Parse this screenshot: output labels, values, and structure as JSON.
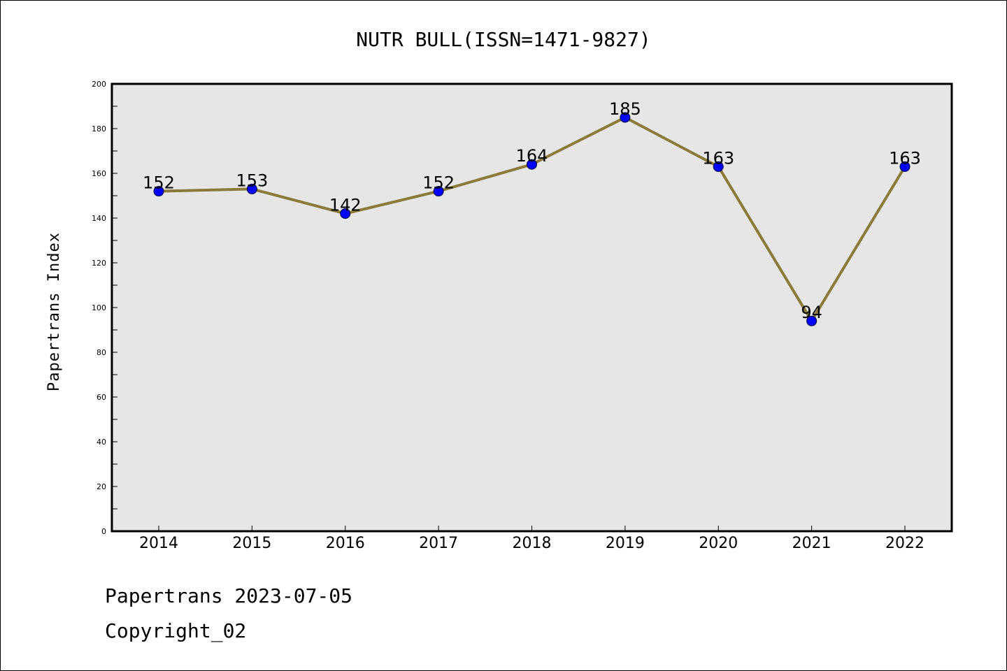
{
  "chart_data": {
    "type": "line",
    "title": "NUTR BULL(ISSN=1471-9827)",
    "xlabel": "",
    "ylabel": "Papertrans Index",
    "categories": [
      "2014",
      "2015",
      "2016",
      "2017",
      "2018",
      "2019",
      "2020",
      "2021",
      "2022"
    ],
    "values": [
      152,
      153,
      142,
      152,
      164,
      185,
      163,
      94,
      163
    ],
    "ylim": [
      0,
      200
    ],
    "yticks": [
      0,
      20,
      40,
      60,
      80,
      100,
      120,
      140,
      160,
      180,
      200
    ],
    "grid": false,
    "legend": "none",
    "colors": {
      "line": "#8b7b3a",
      "marker": "#0000ff",
      "plot_background": "#e6e6e6"
    }
  },
  "footer": {
    "date_line": "Papertrans 2023-07-05",
    "copyright_line": "Copyright_02"
  }
}
